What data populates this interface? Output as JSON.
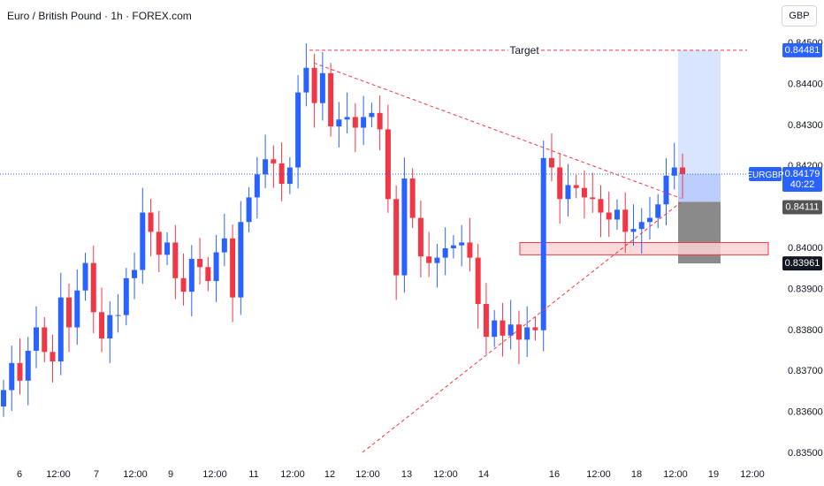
{
  "header": {
    "title": "Euro / British Pound · 1h · FOREX.com"
  },
  "currency": "GBP",
  "annotations": {
    "target_label": "Target"
  },
  "price_badges": {
    "target": "0.84481",
    "symbol": "EURGBP",
    "current_price": "0.84179",
    "countdown": "40:22",
    "entry": "0.84111",
    "stop": "0.83961"
  },
  "colors": {
    "bull": "#2962ff",
    "bear": "#f23645",
    "target_zone": "#c9d8fe",
    "stop_zone": "#8a8a8a",
    "support_zone": "#fbd3d6",
    "price_line": "#2962ff"
  },
  "chart_data": {
    "type": "candlestick",
    "y_ticks": [
      "0.84500",
      "0.84400",
      "0.84300",
      "0.84200",
      "0.84000",
      "0.83900",
      "0.83800",
      "0.83700",
      "0.83600",
      "0.83500"
    ],
    "ylim": [
      0.835,
      0.8452
    ],
    "x_ticks": [
      "6",
      "12:00",
      "7",
      "12:00",
      "9",
      "12:00",
      "11",
      "12:00",
      "12",
      "12:00",
      "13",
      "12:00",
      "14",
      "16",
      "12:00",
      "18",
      "12:00",
      "19",
      "12:00"
    ],
    "close_series": [
      0.83652,
      0.83718,
      0.83675,
      0.83748,
      0.83805,
      0.83745,
      0.83722,
      0.83878,
      0.83805,
      0.83895,
      0.83962,
      0.83842,
      0.83778,
      0.83835,
      0.83835,
      0.83925,
      0.83945,
      0.84085,
      0.84038,
      0.83982,
      0.84012,
      0.83925,
      0.83892,
      0.83972,
      0.83952,
      0.83918,
      0.83988,
      0.84022,
      0.83878,
      0.84062,
      0.84122,
      0.84178,
      0.84215,
      0.84205,
      0.84155,
      0.84195,
      0.84378,
      0.84438,
      0.84352,
      0.84425,
      0.84295,
      0.84312,
      0.84318,
      0.84292,
      0.84318,
      0.84328,
      0.84288,
      0.84118,
      0.83932,
      0.84168,
      0.84072,
      0.83978,
      0.83962,
      0.83975,
      0.83998,
      0.84005,
      0.84012,
      0.83975,
      0.83862,
      0.83782,
      0.83822,
      0.83785,
      0.83812,
      0.83775,
      0.83805,
      0.83798,
      0.84218,
      0.84195,
      0.84118,
      0.84152,
      0.84145,
      0.84122,
      0.84118,
      0.84085,
      0.84068,
      0.84092,
      0.84038,
      0.84045,
      0.84062,
      0.84072,
      0.84105,
      0.84175,
      0.84195,
      0.84179
    ],
    "levels": {
      "target": 0.84481,
      "current": 0.84179,
      "entry": 0.84111,
      "stop": 0.83961,
      "support_zone": [
        0.83982,
        0.84012
      ]
    },
    "trendlines": [
      {
        "name": "upper",
        "from": 0.8445,
        "to": 0.8412
      },
      {
        "name": "lower",
        "from": 0.835,
        "to": 0.8411
      }
    ]
  }
}
